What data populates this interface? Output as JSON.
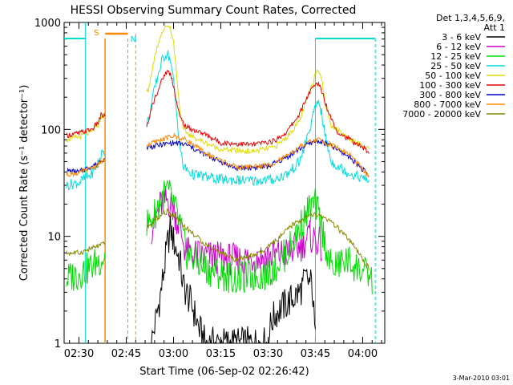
{
  "chart_data": {
    "type": "line",
    "title": "HESSI Observing Summary Count Rates, Corrected",
    "xlabel": "Start Time (06-Sep-02 02:26:42)",
    "ylabel": "Corrected Count Rate (s⁻¹ detector⁻¹)",
    "footer": "3-Mar-2010 03:01",
    "ylog": true,
    "ylim": [
      1,
      1000
    ],
    "xlim_minutes": [
      -4.7,
      97
    ],
    "x_ticks": [
      {
        "label": "02:30",
        "min": 0
      },
      {
        "label": "02:45",
        "min": 15
      },
      {
        "label": "03:00",
        "min": 30
      },
      {
        "label": "03:15",
        "min": 45
      },
      {
        "label": "03:30",
        "min": 60
      },
      {
        "label": "03:45",
        "min": 75
      },
      {
        "label": "04:00",
        "min": 90
      }
    ],
    "y_ticks": [
      {
        "label": "1",
        "value": 1
      },
      {
        "label": "10",
        "value": 10
      },
      {
        "label": "100",
        "value": 100
      },
      {
        "label": "1000",
        "value": 1000
      }
    ],
    "legend": {
      "header_line1": "Det 1,3,4,5,6,9,",
      "header_line2": "Att 1",
      "placement": "top-right"
    },
    "series": [
      {
        "name": "3 - 6 keV",
        "color": "#000000",
        "points": [
          [
            23,
            1
          ],
          [
            26,
            3
          ],
          [
            28,
            8
          ],
          [
            29,
            12
          ],
          [
            30,
            9
          ],
          [
            32,
            6
          ],
          [
            33,
            3.5
          ],
          [
            34,
            3
          ],
          [
            36,
            2.2
          ],
          [
            38,
            1.4
          ],
          [
            40,
            1
          ],
          [
            60,
            1
          ],
          [
            61,
            1.6
          ],
          [
            63,
            2
          ],
          [
            67,
            2.5
          ],
          [
            70,
            3
          ],
          [
            72,
            4
          ],
          [
            74,
            3.5
          ],
          [
            75,
            1
          ]
        ]
      },
      {
        "name": "6 - 12 keV",
        "color": "#cc00cc",
        "points": [
          [
            23,
            12
          ],
          [
            26,
            20
          ],
          [
            28,
            22
          ],
          [
            30,
            18
          ],
          [
            32,
            12
          ],
          [
            34,
            7
          ],
          [
            40,
            6.5
          ],
          [
            50,
            6
          ],
          [
            60,
            6.5
          ],
          [
            66,
            7
          ],
          [
            70,
            8
          ],
          [
            73,
            10
          ],
          [
            76,
            9
          ],
          [
            77,
            7.5
          ]
        ]
      },
      {
        "name": "12 - 25 keV",
        "color": "#00dd00",
        "points": [
          [
            -4,
            4
          ],
          [
            0,
            4.5
          ],
          [
            3,
            5
          ],
          [
            23,
            14
          ],
          [
            26,
            22
          ],
          [
            28,
            27
          ],
          [
            30,
            20
          ],
          [
            32,
            13
          ],
          [
            34,
            7
          ],
          [
            40,
            5
          ],
          [
            50,
            4
          ],
          [
            60,
            4.5
          ],
          [
            66,
            7
          ],
          [
            70,
            12
          ],
          [
            73,
            18
          ],
          [
            75,
            20
          ],
          [
            77,
            12
          ],
          [
            80,
            5
          ],
          [
            85,
            6
          ],
          [
            93,
            4
          ]
        ]
      },
      {
        "name": "25 - 50 keV",
        "color": "#00dddd",
        "points": [
          [
            -4,
            30
          ],
          [
            0,
            32
          ],
          [
            4,
            38
          ],
          [
            6,
            48
          ],
          [
            7,
            58
          ],
          [
            22,
            120
          ],
          [
            24,
            240
          ],
          [
            26,
            410
          ],
          [
            27,
            480
          ],
          [
            28,
            520
          ],
          [
            29,
            450
          ],
          [
            30,
            280
          ],
          [
            31,
            140
          ],
          [
            32,
            70
          ],
          [
            33,
            45
          ],
          [
            36,
            38
          ],
          [
            45,
            34
          ],
          [
            55,
            33
          ],
          [
            62,
            34
          ],
          [
            66,
            38
          ],
          [
            70,
            50
          ],
          [
            73,
            95
          ],
          [
            75,
            160
          ],
          [
            76,
            190
          ],
          [
            77,
            140
          ],
          [
            78,
            90
          ],
          [
            80,
            50
          ],
          [
            85,
            40
          ],
          [
            92,
            33
          ]
        ]
      },
      {
        "name": "50 - 100 keV",
        "color": "#dddd00",
        "points": [
          [
            -4,
            80
          ],
          [
            0,
            85
          ],
          [
            4,
            95
          ],
          [
            6,
            110
          ],
          [
            7,
            130
          ],
          [
            22,
            230
          ],
          [
            24,
            480
          ],
          [
            26,
            780
          ],
          [
            28,
            950
          ],
          [
            29,
            900
          ],
          [
            30,
            650
          ],
          [
            31,
            330
          ],
          [
            32,
            150
          ],
          [
            33,
            100
          ],
          [
            36,
            85
          ],
          [
            45,
            65
          ],
          [
            55,
            62
          ],
          [
            62,
            68
          ],
          [
            66,
            85
          ],
          [
            70,
            120
          ],
          [
            72,
            180
          ],
          [
            74,
            260
          ],
          [
            75,
            340
          ],
          [
            76,
            370
          ],
          [
            77,
            300
          ],
          [
            78,
            180
          ],
          [
            80,
            110
          ],
          [
            85,
            85
          ],
          [
            92,
            65
          ]
        ]
      },
      {
        "name": "100 - 300 keV",
        "color": "#ee0000",
        "points": [
          [
            -4,
            88
          ],
          [
            0,
            92
          ],
          [
            4,
            100
          ],
          [
            6,
            115
          ],
          [
            7,
            135
          ],
          [
            22,
            110
          ],
          [
            23,
            160
          ],
          [
            25,
            230
          ],
          [
            27,
            320
          ],
          [
            28,
            350
          ],
          [
            29,
            330
          ],
          [
            30,
            260
          ],
          [
            31,
            180
          ],
          [
            32,
            130
          ],
          [
            34,
            105
          ],
          [
            40,
            90
          ],
          [
            45,
            75
          ],
          [
            55,
            72
          ],
          [
            62,
            78
          ],
          [
            66,
            95
          ],
          [
            70,
            140
          ],
          [
            73,
            220
          ],
          [
            75,
            260
          ],
          [
            76,
            270
          ],
          [
            77,
            230
          ],
          [
            79,
            150
          ],
          [
            82,
            95
          ],
          [
            86,
            80
          ],
          [
            92,
            62
          ]
        ]
      },
      {
        "name": "300 - 800 keV",
        "color": "#0000cc",
        "points": [
          [
            -4,
            41
          ],
          [
            0,
            40
          ],
          [
            6,
            48
          ],
          [
            7,
            52
          ],
          [
            22,
            68
          ],
          [
            26,
            72
          ],
          [
            30,
            75
          ],
          [
            34,
            72
          ],
          [
            40,
            58
          ],
          [
            50,
            43
          ],
          [
            60,
            45
          ],
          [
            66,
            55
          ],
          [
            70,
            66
          ],
          [
            74,
            76
          ],
          [
            76,
            78
          ],
          [
            80,
            70
          ],
          [
            86,
            55
          ],
          [
            92,
            37
          ]
        ]
      },
      {
        "name": "800 - 7000 keV",
        "color": "#ff8800",
        "points": [
          [
            -4,
            38
          ],
          [
            0,
            39
          ],
          [
            6,
            46
          ],
          [
            7,
            50
          ],
          [
            22,
            72
          ],
          [
            26,
            80
          ],
          [
            30,
            87
          ],
          [
            34,
            80
          ],
          [
            40,
            60
          ],
          [
            50,
            44
          ],
          [
            60,
            46
          ],
          [
            66,
            56
          ],
          [
            70,
            68
          ],
          [
            74,
            78
          ],
          [
            76,
            80
          ],
          [
            80,
            72
          ],
          [
            86,
            58
          ],
          [
            92,
            36
          ]
        ]
      },
      {
        "name": "7000 - 20000 keV",
        "color": "#888800",
        "points": [
          [
            -4,
            7
          ],
          [
            0,
            7
          ],
          [
            3,
            7.5
          ],
          [
            22,
            12
          ],
          [
            25,
            15
          ],
          [
            28,
            17
          ],
          [
            31,
            15
          ],
          [
            34,
            12
          ],
          [
            40,
            8.5
          ],
          [
            50,
            6
          ],
          [
            58,
            7
          ],
          [
            64,
            10
          ],
          [
            68,
            13
          ],
          [
            72,
            15
          ],
          [
            75,
            16
          ],
          [
            78,
            15
          ],
          [
            82,
            12
          ],
          [
            86,
            9
          ],
          [
            92,
            5
          ]
        ]
      }
    ],
    "annotations": [
      {
        "label": "S",
        "color": "#ff8800"
      },
      {
        "label": "N",
        "color": "#00dddd"
      }
    ]
  }
}
